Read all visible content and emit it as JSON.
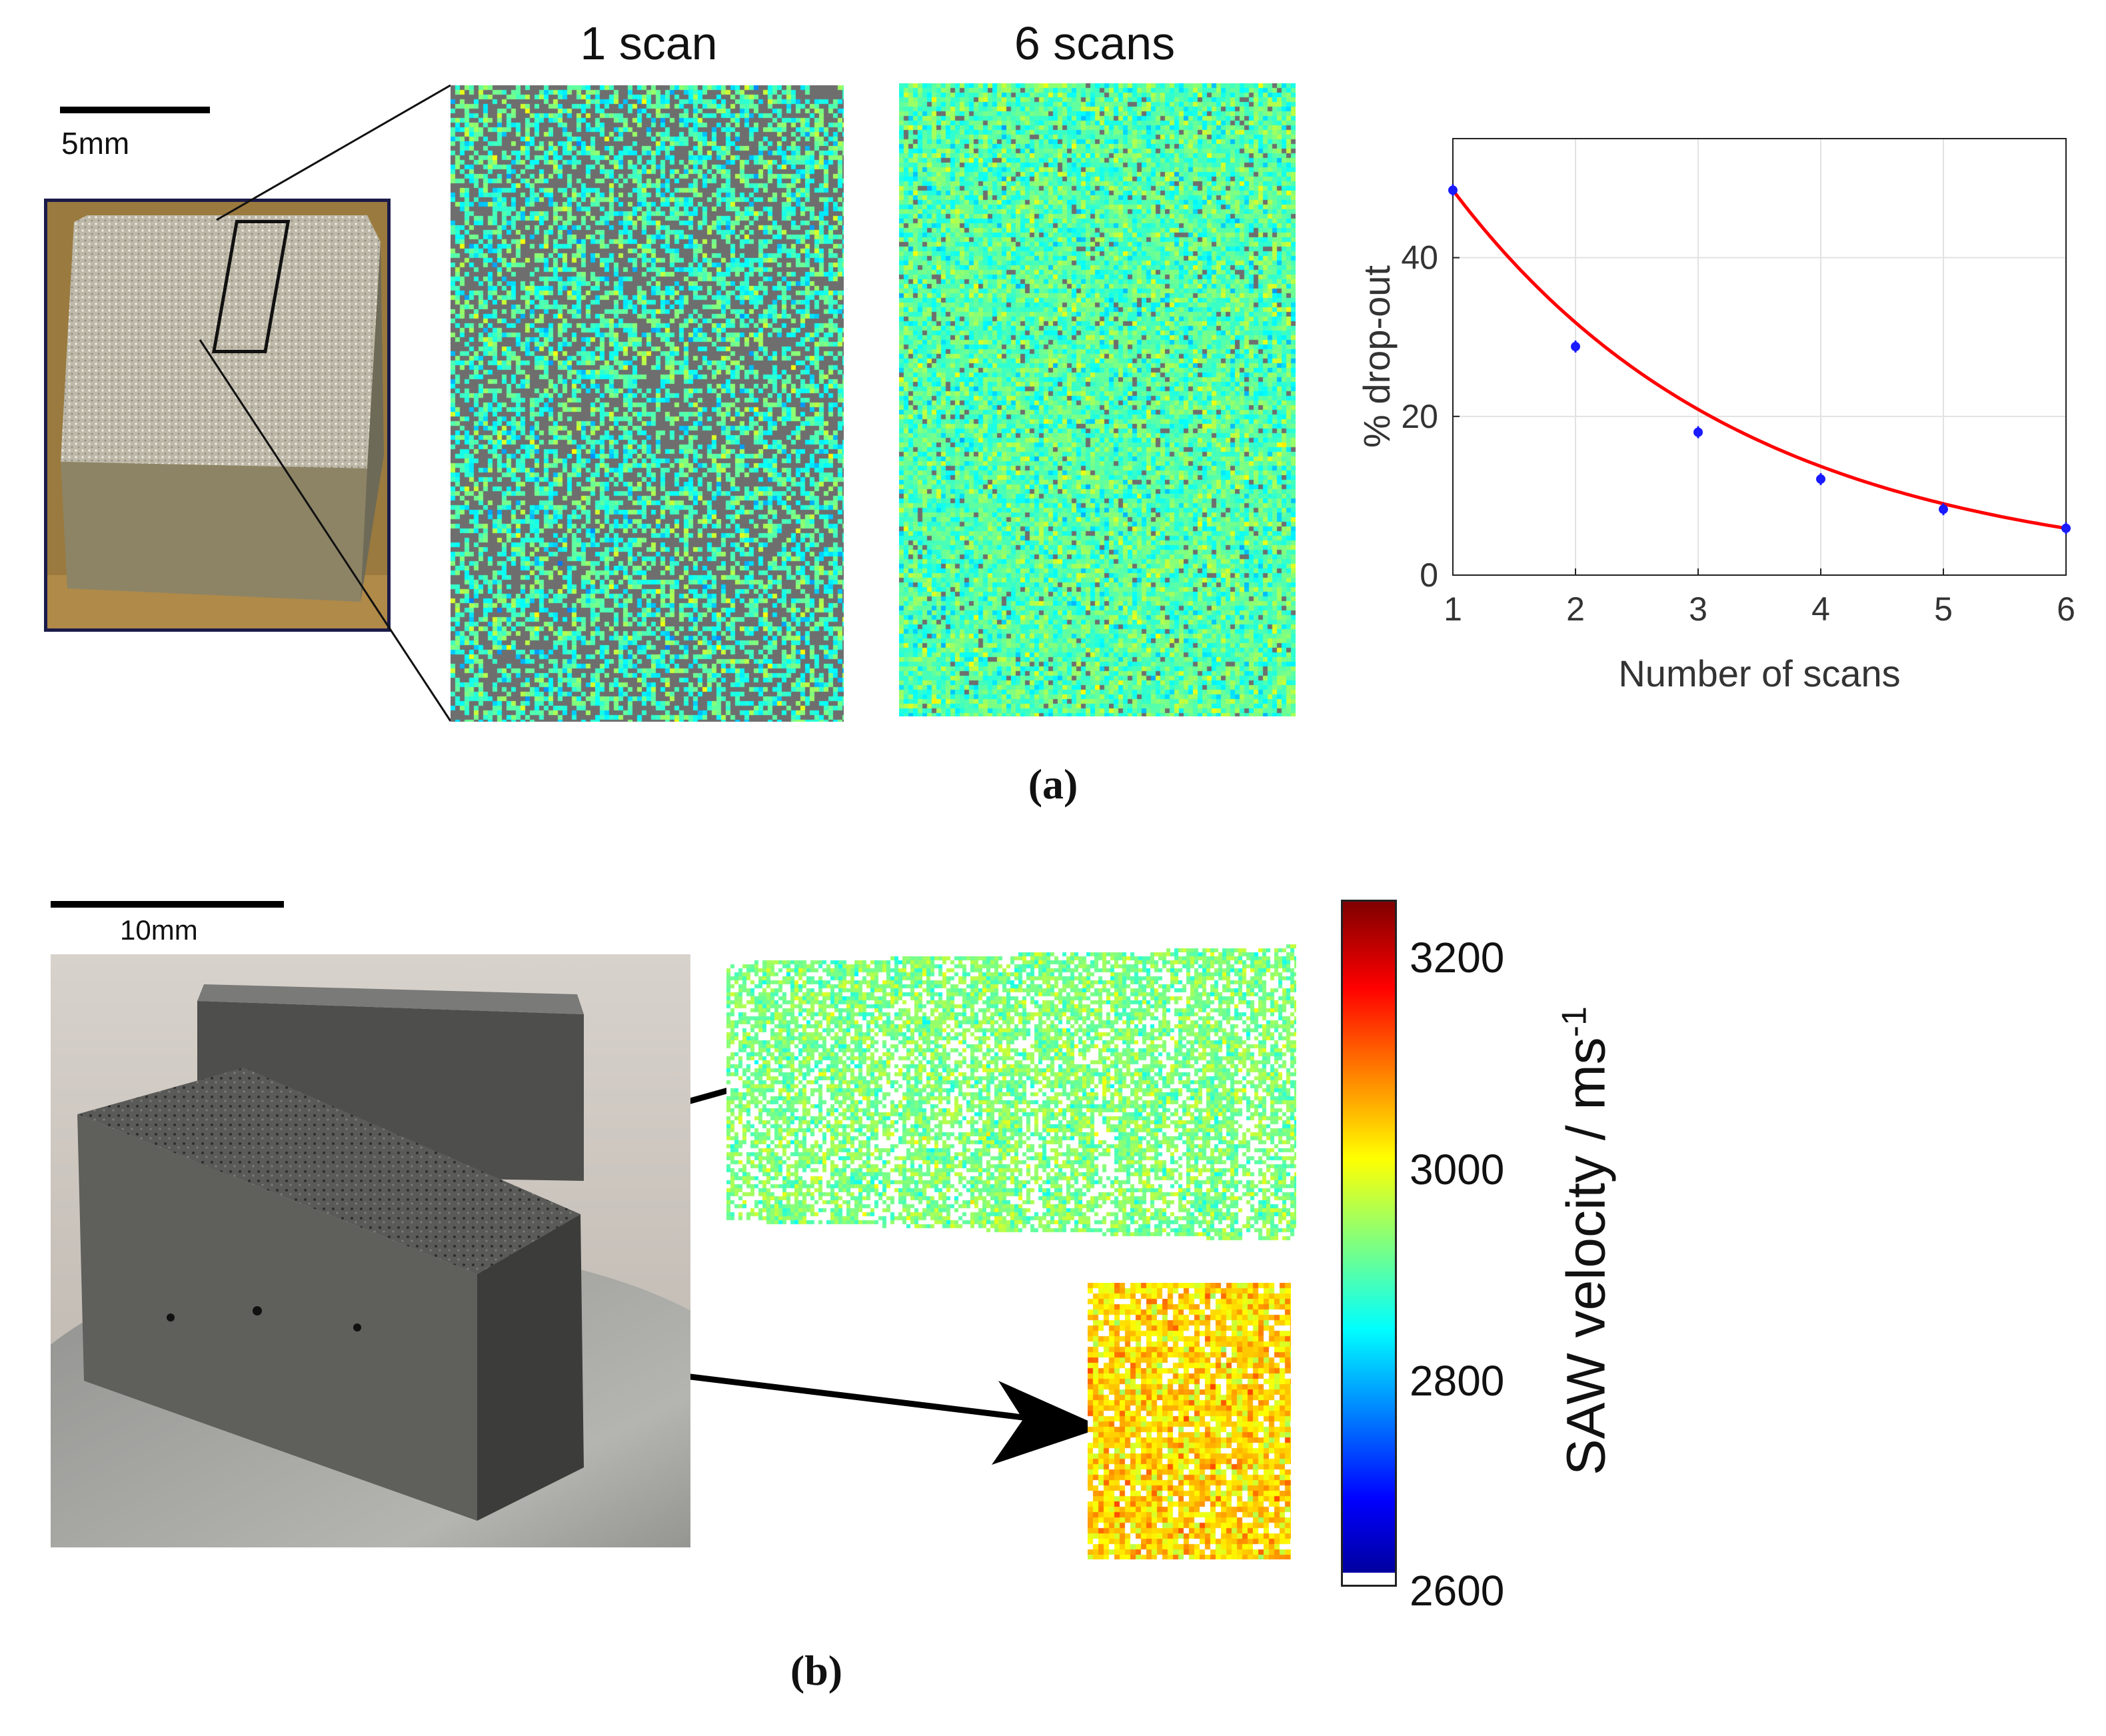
{
  "panel_a": {
    "scale_label": "5mm",
    "map1_title": "1 scan",
    "map2_title": "6 scans",
    "caption": "(a)"
  },
  "panel_b": {
    "scale_label": "10mm",
    "caption": "(b)"
  },
  "colorbar": {
    "label": "SAW velocity / ms",
    "label_superscript": "-1",
    "ticks": [
      "3200",
      "3000",
      "2800",
      "2600"
    ],
    "range": [
      2600,
      3250
    ],
    "colormap": "jet",
    "colors": [
      "#00008f",
      "#0000ff",
      "#0080ff",
      "#00ffff",
      "#80ff80",
      "#ffff00",
      "#ff8000",
      "#ff0000",
      "#800000"
    ]
  },
  "chart_data": {
    "type": "line",
    "x": [
      1,
      2,
      3,
      4,
      5,
      6
    ],
    "y": [
      48.5,
      28.8,
      18.0,
      12.1,
      8.3,
      5.9
    ],
    "fit": "exponential decay",
    "xlabel": "Number of scans",
    "ylabel": "% drop-out",
    "xlim": [
      1,
      6
    ],
    "ylim": [
      0,
      55
    ],
    "xticks": [
      "1",
      "2",
      "3",
      "4",
      "5",
      "6"
    ],
    "yticks": [
      "0",
      "20",
      "40"
    ],
    "grid": true,
    "line_color": "#ff0000",
    "marker_color": "#1a1aff"
  }
}
